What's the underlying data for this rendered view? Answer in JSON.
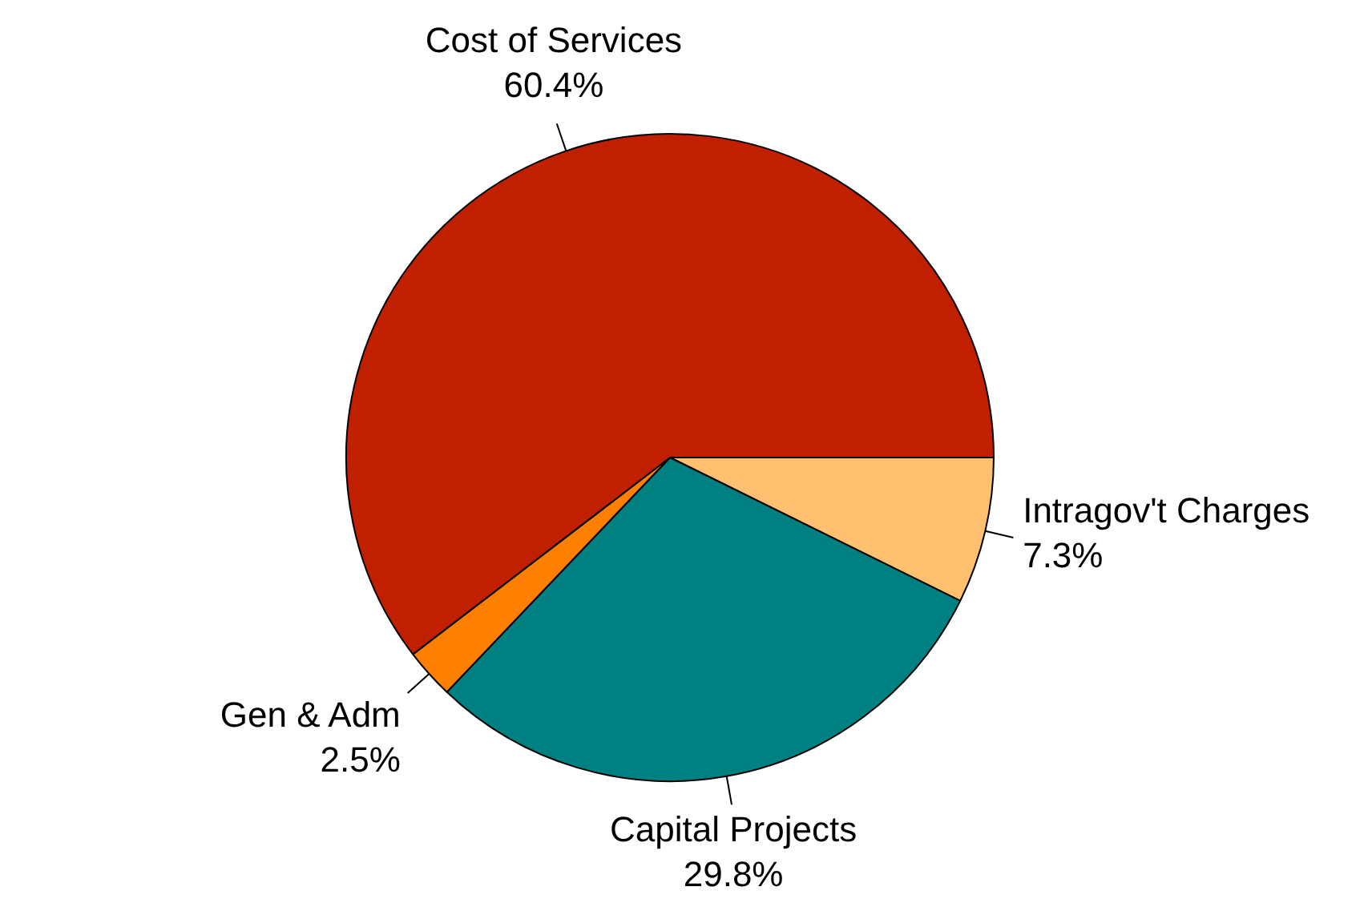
{
  "chart_data": {
    "type": "pie",
    "categories": [
      "Intragov't Charges",
      "Capital Projects",
      "Gen & Adm",
      "Cost of Services"
    ],
    "values": [
      7.3,
      29.8,
      2.5,
      60.4
    ],
    "colors": [
      "#ffc070",
      "#008080",
      "#ff8000",
      "#c02000"
    ],
    "value_labels": [
      "7.3%",
      "29.8%",
      "2.5%",
      "60.4%"
    ],
    "legend": false
  }
}
